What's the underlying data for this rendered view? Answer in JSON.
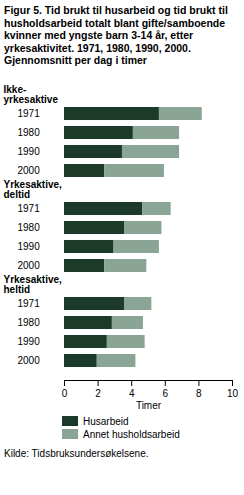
{
  "chart_data": {
    "type": "bar",
    "orientation": "horizontal",
    "stacked": true,
    "title": "Figur 5. Tid brukt til husarbeid og tid brukt til husholdsarbeid totalt blant gifte/samboende kvinner med yngste barn 3-14 år, etter yrkesaktivitet. 1971, 1980, 1990, 2000. Gjennomsnitt per dag i timer",
    "categories": [
      "Ikke-yrkesaktive",
      "1971",
      "1980",
      "1990",
      "2000",
      "Yrkesaktive, deltid",
      "1971",
      "1980",
      "1990",
      "2000",
      "Yrkesaktive, heltid",
      "1971",
      "1980",
      "1990",
      "2000"
    ],
    "series": [
      {
        "name": "Husarbeid",
        "color": "#1c3a2a",
        "values": [
          null,
          5.65,
          4.1,
          3.45,
          2.4,
          null,
          4.65,
          3.6,
          2.95,
          2.4,
          null,
          3.6,
          2.85,
          2.55,
          1.95
        ]
      },
      {
        "name": "Annet husholdsarbeid",
        "color": "#8aa596",
        "values": [
          null,
          2.55,
          2.75,
          3.4,
          3.55,
          null,
          1.7,
          2.2,
          2.7,
          2.5,
          null,
          1.6,
          1.85,
          2.25,
          2.3
        ]
      }
    ],
    "xlim": [
      0,
      10
    ],
    "xticks": [
      0,
      2,
      4,
      6,
      8,
      10
    ],
    "xlabel": "Timer",
    "legend": "bottom",
    "source": "Kilde: Tidsbruksundersøkelsene."
  }
}
